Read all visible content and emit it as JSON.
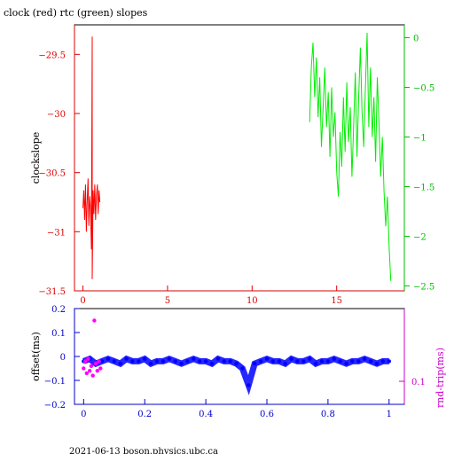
{
  "title": "clock (red) rtc (green) slopes",
  "footer": "2021-06-13 boson.physics.ubc.ca",
  "chart_data": [
    {
      "type": "line",
      "title": "clock (red) rtc (green) slopes",
      "xlabel": "",
      "ylabel": "clockslope",
      "xlim": [
        -0.5,
        19
      ],
      "ylim": [
        -31.5,
        -29.25
      ],
      "y2lim": [
        -2.55,
        0.13
      ],
      "x_ticks": [
        0,
        5,
        10,
        15
      ],
      "y_ticks": [
        -29.5,
        -30,
        -30.5,
        -31,
        -31.5
      ],
      "y2_ticks": [
        0,
        -0.5,
        -1,
        -1.5,
        -2,
        -2.5
      ],
      "series": [
        {
          "name": "clock",
          "color": "#ff0000",
          "axis": "left",
          "x": [
            0.0,
            0.05,
            0.1,
            0.15,
            0.2,
            0.25,
            0.3,
            0.35,
            0.4,
            0.45,
            0.5,
            0.55,
            0.55,
            0.6,
            0.65,
            0.7,
            0.75,
            0.8,
            0.85,
            0.9,
            0.95,
            1.0
          ],
          "y": [
            -30.8,
            -30.65,
            -30.9,
            -30.6,
            -31.0,
            -30.75,
            -30.55,
            -30.95,
            -30.7,
            -30.8,
            -31.15,
            -29.35,
            -31.4,
            -30.65,
            -30.85,
            -30.6,
            -30.9,
            -30.7,
            -30.6,
            -30.85,
            -30.65,
            -30.75
          ]
        },
        {
          "name": "rtc",
          "color": "#00ee00",
          "axis": "right",
          "x": [
            13.4,
            13.5,
            13.6,
            13.7,
            13.8,
            13.9,
            14.0,
            14.1,
            14.2,
            14.3,
            14.4,
            14.5,
            14.6,
            14.7,
            14.8,
            14.9,
            15.0,
            15.1,
            15.2,
            15.3,
            15.4,
            15.5,
            15.6,
            15.7,
            15.8,
            15.9,
            16.0,
            16.1,
            16.2,
            16.3,
            16.4,
            16.5,
            16.6,
            16.7,
            16.8,
            16.9,
            17.0,
            17.1,
            17.2,
            17.3,
            17.4,
            17.5,
            17.6,
            17.7,
            17.8,
            17.9,
            18.0,
            18.1,
            18.2
          ],
          "y": [
            -0.85,
            -0.3,
            -0.05,
            -0.6,
            -0.2,
            -0.8,
            -0.4,
            -1.1,
            -0.7,
            -0.3,
            -0.9,
            -0.55,
            -1.2,
            -0.5,
            -1.0,
            -0.75,
            -1.35,
            -1.6,
            -0.95,
            -1.3,
            -0.6,
            -1.15,
            -0.45,
            -1.05,
            -0.7,
            -1.4,
            -0.9,
            -0.35,
            -1.2,
            -0.6,
            -0.1,
            -0.75,
            -1.1,
            -0.5,
            0.05,
            -0.9,
            -0.3,
            -1.0,
            -0.6,
            -1.25,
            -0.4,
            -0.85,
            -1.4,
            -1.0,
            -1.55,
            -1.9,
            -1.6,
            -2.1,
            -2.45
          ]
        }
      ]
    },
    {
      "type": "scatter",
      "xlabel": "",
      "ylabel": "offset(ms)",
      "y2label": "rnd-trip(ms)",
      "xlim": [
        -0.03,
        1.05
      ],
      "ylim": [
        -0.2,
        0.2
      ],
      "x_ticks": [
        0,
        0.2,
        0.4,
        0.6,
        0.8,
        1
      ],
      "x_tick_labels": [
        "0",
        "0.2",
        "0.4",
        "0.6",
        "0.8",
        "1"
      ],
      "y_ticks": [
        0.2,
        0.1,
        0,
        -0.1,
        -0.2
      ],
      "y_tick_labels": [
        "0.2",
        "0.1",
        "0",
        "−0.1",
        "−0.2"
      ],
      "y2_tick_labels": [
        "0.1"
      ],
      "series": [
        {
          "name": "offset",
          "color": "#0000ff",
          "x": [
            0.0,
            0.02,
            0.04,
            0.06,
            0.08,
            0.1,
            0.12,
            0.14,
            0.16,
            0.18,
            0.2,
            0.22,
            0.24,
            0.26,
            0.28,
            0.3,
            0.32,
            0.34,
            0.36,
            0.38,
            0.4,
            0.42,
            0.44,
            0.46,
            0.48,
            0.5,
            0.52,
            0.54,
            0.56,
            0.58,
            0.6,
            0.62,
            0.64,
            0.66,
            0.68,
            0.7,
            0.72,
            0.74,
            0.76,
            0.78,
            0.8,
            0.82,
            0.84,
            0.86,
            0.88,
            0.9,
            0.92,
            0.94,
            0.96,
            0.98,
            1.0
          ],
          "y": [
            -0.02,
            -0.01,
            -0.03,
            -0.02,
            -0.01,
            -0.02,
            -0.03,
            -0.01,
            -0.02,
            -0.02,
            -0.01,
            -0.03,
            -0.02,
            -0.02,
            -0.01,
            -0.02,
            -0.03,
            -0.02,
            -0.01,
            -0.02,
            -0.02,
            -0.03,
            -0.01,
            -0.02,
            -0.02,
            -0.03,
            -0.05,
            -0.12,
            -0.03,
            -0.02,
            -0.01,
            -0.02,
            -0.02,
            -0.03,
            -0.01,
            -0.02,
            -0.02,
            -0.01,
            -0.03,
            -0.02,
            -0.02,
            -0.01,
            -0.02,
            -0.03,
            -0.02,
            -0.02,
            -0.01,
            -0.02,
            -0.03,
            -0.02,
            -0.02
          ]
        },
        {
          "name": "rnd-trip",
          "color": "#ff00ff",
          "x": [
            0.0,
            0.005,
            0.01,
            0.015,
            0.02,
            0.025,
            0.03,
            0.035,
            0.04,
            0.045,
            0.05,
            0.055
          ],
          "y": [
            -0.05,
            -0.02,
            -0.07,
            -0.01,
            -0.06,
            -0.04,
            -0.08,
            0.15,
            -0.03,
            -0.06,
            -0.02,
            -0.05
          ]
        }
      ]
    }
  ]
}
